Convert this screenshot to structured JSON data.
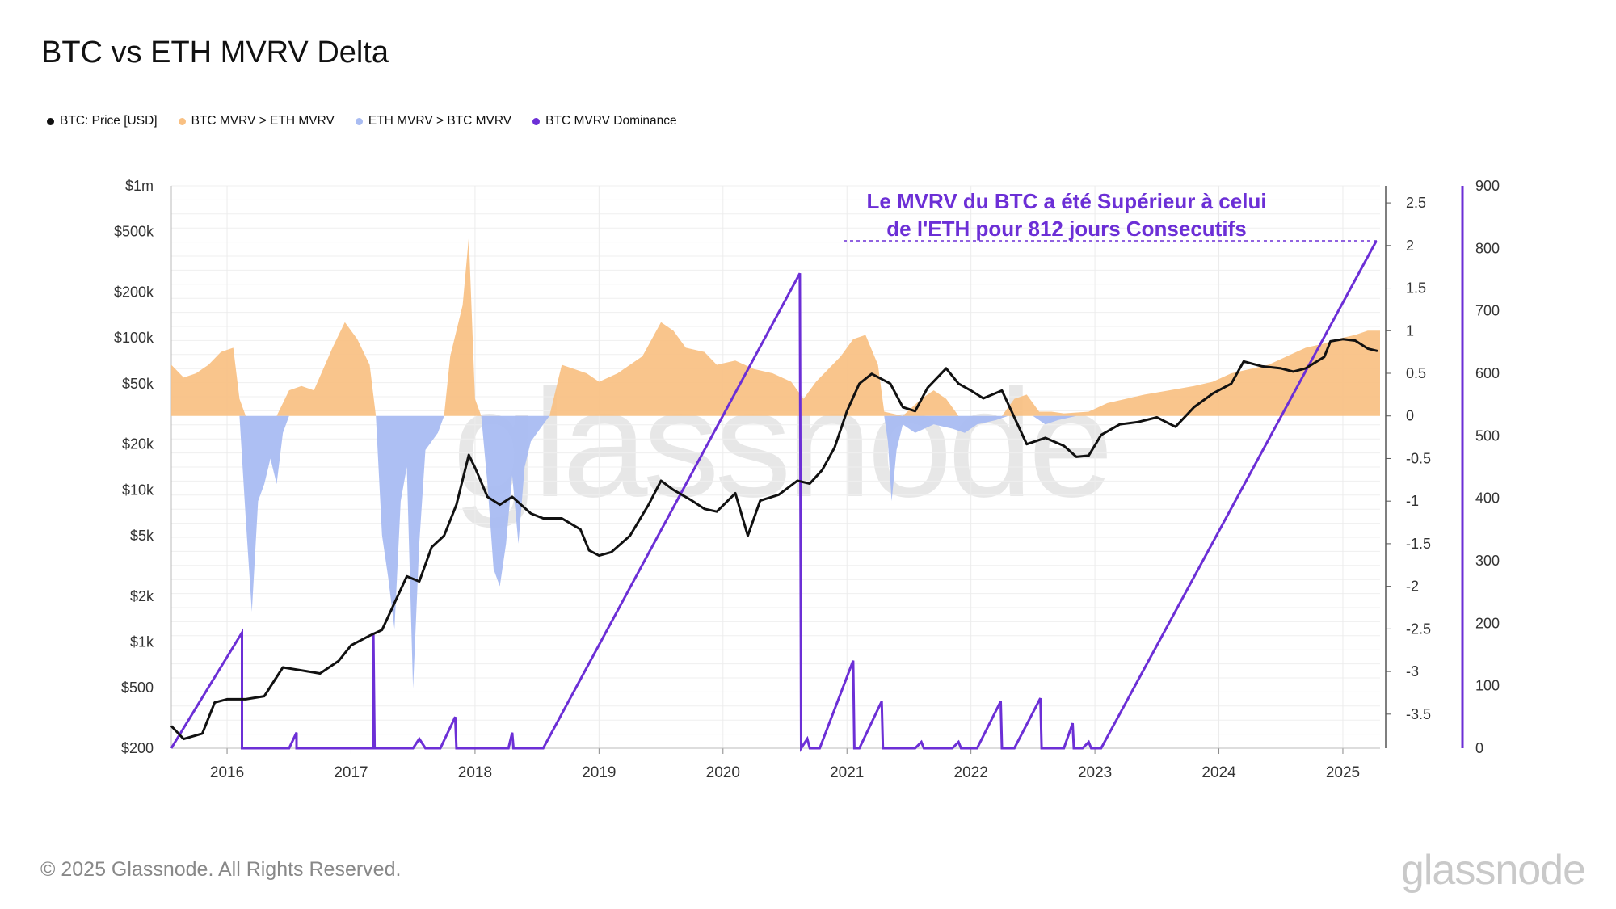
{
  "title": "BTC vs ETH MVRV Delta",
  "legend": [
    {
      "label": "BTC: Price [USD]",
      "color": "#111111"
    },
    {
      "label": "BTC MVRV > ETH MVRV",
      "color": "#f9c082"
    },
    {
      "label": "ETH MVRV > BTC MVRV",
      "color": "#a9bcf2"
    },
    {
      "label": "BTC MVRV Dominance",
      "color": "#6c2fd6"
    }
  ],
  "annotation_lines": [
    "Le MVRV du BTC a été Supérieur à celui",
    "de l'ETH pour 812 jours Consecutifs"
  ],
  "watermark": "glassnode",
  "footer": "© 2025 Glassnode. All Rights Reserved.",
  "brand": "glassnode",
  "chart_data": {
    "type": "line",
    "x_ticks": [
      "2016",
      "2017",
      "2018",
      "2019",
      "2020",
      "2021",
      "2022",
      "2023",
      "2024",
      "2025"
    ],
    "x_range": [
      2015.55,
      2025.3
    ],
    "y_left": {
      "scale": "log",
      "range": [
        200,
        1000000
      ],
      "ticks": [
        [
          "$200",
          200
        ],
        [
          "$500",
          500
        ],
        [
          "$1k",
          1000
        ],
        [
          "$2k",
          2000
        ],
        [
          "$5k",
          5000
        ],
        [
          "$10k",
          10000
        ],
        [
          "$20k",
          20000
        ],
        [
          "$50k",
          50000
        ],
        [
          "$100k",
          100000
        ],
        [
          "$200k",
          200000
        ],
        [
          "$500k",
          500000
        ],
        [
          "$1m",
          1000000
        ]
      ]
    },
    "y_right1": {
      "range": [
        -3.9,
        2.7
      ],
      "ticks": [
        [
          "2.5",
          2.5
        ],
        [
          "2",
          2
        ],
        [
          "1.5",
          1.5
        ],
        [
          "1",
          1
        ],
        [
          "0.5",
          0.5
        ],
        [
          "0",
          0
        ],
        [
          "-0.5",
          -0.5
        ],
        [
          "-1",
          -1
        ],
        [
          "-1.5",
          -1.5
        ],
        [
          "-2",
          -2
        ],
        [
          "-2.5",
          -2.5
        ],
        [
          "-3",
          -3
        ],
        [
          "-3.5",
          -3.5
        ]
      ]
    },
    "y_right2": {
      "range": [
        0,
        900
      ],
      "ticks": [
        [
          "900",
          900
        ],
        [
          "800",
          800
        ],
        [
          "700",
          700
        ],
        [
          "600",
          600
        ],
        [
          "500",
          500
        ],
        [
          "400",
          400
        ],
        [
          "300",
          300
        ],
        [
          "200",
          200
        ],
        [
          "100",
          100
        ],
        [
          "0",
          0
        ]
      ]
    },
    "annotation_value": 812,
    "series": [
      {
        "name": "BTC: Price [USD]",
        "axis": "left",
        "color": "#111111",
        "points": [
          [
            2015.55,
            280
          ],
          [
            2015.65,
            230
          ],
          [
            2015.8,
            250
          ],
          [
            2015.9,
            400
          ],
          [
            2016.0,
            420
          ],
          [
            2016.15,
            420
          ],
          [
            2016.3,
            440
          ],
          [
            2016.45,
            680
          ],
          [
            2016.6,
            650
          ],
          [
            2016.75,
            620
          ],
          [
            2016.9,
            750
          ],
          [
            2017.0,
            950
          ],
          [
            2017.15,
            1100
          ],
          [
            2017.25,
            1200
          ],
          [
            2017.35,
            1800
          ],
          [
            2017.45,
            2700
          ],
          [
            2017.55,
            2500
          ],
          [
            2017.65,
            4200
          ],
          [
            2017.75,
            5000
          ],
          [
            2017.85,
            8000
          ],
          [
            2017.95,
            17000
          ],
          [
            2018.0,
            14000
          ],
          [
            2018.1,
            9000
          ],
          [
            2018.2,
            8000
          ],
          [
            2018.3,
            9000
          ],
          [
            2018.45,
            7000
          ],
          [
            2018.55,
            6500
          ],
          [
            2018.7,
            6500
          ],
          [
            2018.85,
            5500
          ],
          [
            2018.92,
            4000
          ],
          [
            2019.0,
            3700
          ],
          [
            2019.1,
            3900
          ],
          [
            2019.25,
            5000
          ],
          [
            2019.4,
            8000
          ],
          [
            2019.5,
            11500
          ],
          [
            2019.6,
            10000
          ],
          [
            2019.75,
            8500
          ],
          [
            2019.85,
            7500
          ],
          [
            2019.95,
            7200
          ],
          [
            2020.1,
            9500
          ],
          [
            2020.2,
            5000
          ],
          [
            2020.3,
            8500
          ],
          [
            2020.45,
            9300
          ],
          [
            2020.6,
            11500
          ],
          [
            2020.7,
            11000
          ],
          [
            2020.8,
            13500
          ],
          [
            2020.9,
            19000
          ],
          [
            2021.0,
            33000
          ],
          [
            2021.1,
            50000
          ],
          [
            2021.2,
            58000
          ],
          [
            2021.35,
            50000
          ],
          [
            2021.45,
            35000
          ],
          [
            2021.55,
            33000
          ],
          [
            2021.65,
            47000
          ],
          [
            2021.8,
            63000
          ],
          [
            2021.9,
            50000
          ],
          [
            2022.0,
            45000
          ],
          [
            2022.1,
            40000
          ],
          [
            2022.25,
            45000
          ],
          [
            2022.35,
            30000
          ],
          [
            2022.45,
            20000
          ],
          [
            2022.6,
            22000
          ],
          [
            2022.75,
            19500
          ],
          [
            2022.85,
            16500
          ],
          [
            2022.95,
            16800
          ],
          [
            2023.05,
            23000
          ],
          [
            2023.2,
            27000
          ],
          [
            2023.35,
            28000
          ],
          [
            2023.5,
            30000
          ],
          [
            2023.65,
            26000
          ],
          [
            2023.8,
            35000
          ],
          [
            2023.95,
            43000
          ],
          [
            2024.1,
            50000
          ],
          [
            2024.2,
            70000
          ],
          [
            2024.35,
            65000
          ],
          [
            2024.5,
            63000
          ],
          [
            2024.6,
            60000
          ],
          [
            2024.7,
            63000
          ],
          [
            2024.85,
            75000
          ],
          [
            2024.9,
            95000
          ],
          [
            2025.0,
            98000
          ],
          [
            2025.1,
            96000
          ],
          [
            2025.2,
            85000
          ],
          [
            2025.28,
            82000
          ]
        ]
      },
      {
        "name": "BTC MVRV > ETH MVRV",
        "axis": "right1",
        "color": "#f9c082",
        "points": [
          [
            2015.55,
            0.6
          ],
          [
            2015.65,
            0.45
          ],
          [
            2015.75,
            0.5
          ],
          [
            2015.85,
            0.6
          ],
          [
            2015.95,
            0.75
          ],
          [
            2016.05,
            0.8
          ],
          [
            2016.1,
            0.2
          ],
          [
            2016.15,
            0
          ],
          [
            2016.4,
            0
          ],
          [
            2016.5,
            0.3
          ],
          [
            2016.6,
            0.35
          ],
          [
            2016.7,
            0.3
          ],
          [
            2016.85,
            0.8
          ],
          [
            2016.95,
            1.1
          ],
          [
            2017.05,
            0.9
          ],
          [
            2017.15,
            0.6
          ],
          [
            2017.2,
            0
          ],
          [
            2017.75,
            0
          ],
          [
            2017.8,
            0.7
          ],
          [
            2017.9,
            1.3
          ],
          [
            2017.95,
            2.1
          ],
          [
            2018.0,
            0.2
          ],
          [
            2018.05,
            0
          ],
          [
            2018.6,
            0
          ],
          [
            2018.7,
            0.6
          ],
          [
            2018.8,
            0.55
          ],
          [
            2018.9,
            0.5
          ],
          [
            2019.0,
            0.4
          ],
          [
            2019.15,
            0.5
          ],
          [
            2019.35,
            0.7
          ],
          [
            2019.5,
            1.1
          ],
          [
            2019.6,
            1.0
          ],
          [
            2019.7,
            0.8
          ],
          [
            2019.85,
            0.75
          ],
          [
            2019.95,
            0.6
          ],
          [
            2020.1,
            0.65
          ],
          [
            2020.25,
            0.55
          ],
          [
            2020.4,
            0.5
          ],
          [
            2020.55,
            0.4
          ],
          [
            2020.65,
            0.2
          ],
          [
            2020.75,
            0.4
          ],
          [
            2020.85,
            0.55
          ],
          [
            2020.95,
            0.7
          ],
          [
            2021.05,
            0.9
          ],
          [
            2021.15,
            0.95
          ],
          [
            2021.25,
            0.6
          ],
          [
            2021.3,
            0.05
          ],
          [
            2021.45,
            0
          ],
          [
            2021.6,
            0.2
          ],
          [
            2021.7,
            0.3
          ],
          [
            2021.8,
            0.2
          ],
          [
            2021.9,
            0
          ],
          [
            2022.25,
            0
          ],
          [
            2022.35,
            0.2
          ],
          [
            2022.45,
            0.25
          ],
          [
            2022.55,
            0.05
          ],
          [
            2022.65,
            0.05
          ],
          [
            2022.75,
            0.03
          ],
          [
            2022.95,
            0.05
          ],
          [
            2023.1,
            0.15
          ],
          [
            2023.25,
            0.2
          ],
          [
            2023.4,
            0.25
          ],
          [
            2023.6,
            0.3
          ],
          [
            2023.8,
            0.35
          ],
          [
            2023.95,
            0.4
          ],
          [
            2024.1,
            0.5
          ],
          [
            2024.25,
            0.55
          ],
          [
            2024.4,
            0.6
          ],
          [
            2024.55,
            0.7
          ],
          [
            2024.7,
            0.8
          ],
          [
            2024.85,
            0.85
          ],
          [
            2024.95,
            0.9
          ],
          [
            2025.1,
            0.95
          ],
          [
            2025.2,
            1.0
          ],
          [
            2025.3,
            1.0
          ]
        ]
      },
      {
        "name": "ETH MVRV > BTC MVRV",
        "axis": "right1",
        "color": "#a9bcf2",
        "points": [
          [
            2015.55,
            0
          ],
          [
            2016.1,
            0
          ],
          [
            2016.15,
            -1.2
          ],
          [
            2016.2,
            -2.3
          ],
          [
            2016.25,
            -1.0
          ],
          [
            2016.3,
            -0.8
          ],
          [
            2016.35,
            -0.5
          ],
          [
            2016.4,
            -0.8
          ],
          [
            2016.45,
            -0.2
          ],
          [
            2016.5,
            0
          ],
          [
            2017.2,
            0
          ],
          [
            2017.25,
            -1.4
          ],
          [
            2017.3,
            -1.9
          ],
          [
            2017.35,
            -2.5
          ],
          [
            2017.4,
            -1.0
          ],
          [
            2017.45,
            -0.6
          ],
          [
            2017.5,
            -3.2
          ],
          [
            2017.55,
            -1.5
          ],
          [
            2017.6,
            -0.4
          ],
          [
            2017.7,
            -0.2
          ],
          [
            2017.75,
            0
          ],
          [
            2018.05,
            0
          ],
          [
            2018.1,
            -0.8
          ],
          [
            2018.15,
            -1.8
          ],
          [
            2018.2,
            -2.0
          ],
          [
            2018.25,
            -1.5
          ],
          [
            2018.3,
            -0.7
          ],
          [
            2018.35,
            -1.5
          ],
          [
            2018.4,
            -0.6
          ],
          [
            2018.45,
            -0.3
          ],
          [
            2018.55,
            -0.1
          ],
          [
            2018.6,
            0
          ],
          [
            2021.3,
            0
          ],
          [
            2021.33,
            -0.3
          ],
          [
            2021.36,
            -1.0
          ],
          [
            2021.4,
            -0.4
          ],
          [
            2021.45,
            -0.1
          ],
          [
            2021.55,
            -0.2
          ],
          [
            2021.7,
            -0.1
          ],
          [
            2021.85,
            -0.15
          ],
          [
            2021.95,
            -0.2
          ],
          [
            2022.05,
            -0.1
          ],
          [
            2022.2,
            -0.05
          ],
          [
            2022.3,
            0
          ],
          [
            2022.5,
            0
          ],
          [
            2022.6,
            -0.1
          ],
          [
            2022.7,
            -0.05
          ],
          [
            2022.85,
            0
          ],
          [
            2025.3,
            0
          ]
        ]
      },
      {
        "name": "BTC MVRV Dominance",
        "axis": "right2",
        "color": "#6c2fd6",
        "points": [
          [
            2015.55,
            0
          ],
          [
            2016.12,
            185
          ],
          [
            2016.12,
            0
          ],
          [
            2016.5,
            0
          ],
          [
            2016.56,
            25
          ],
          [
            2016.56,
            0
          ],
          [
            2017.18,
            0
          ],
          [
            2017.18,
            185
          ],
          [
            2017.19,
            0
          ],
          [
            2017.5,
            0
          ],
          [
            2017.55,
            15
          ],
          [
            2017.6,
            0
          ],
          [
            2017.72,
            0
          ],
          [
            2017.84,
            50
          ],
          [
            2017.85,
            0
          ],
          [
            2018.27,
            0
          ],
          [
            2018.3,
            25
          ],
          [
            2018.31,
            0
          ],
          [
            2018.55,
            0
          ],
          [
            2020.62,
            760
          ],
          [
            2020.63,
            0
          ],
          [
            2020.68,
            15
          ],
          [
            2020.7,
            0
          ],
          [
            2020.78,
            0
          ],
          [
            2021.05,
            140
          ],
          [
            2021.06,
            0
          ],
          [
            2021.1,
            0
          ],
          [
            2021.28,
            75
          ],
          [
            2021.29,
            0
          ],
          [
            2021.55,
            0
          ],
          [
            2021.6,
            10
          ],
          [
            2021.62,
            0
          ],
          [
            2021.85,
            0
          ],
          [
            2021.9,
            10
          ],
          [
            2021.92,
            0
          ],
          [
            2022.05,
            0
          ],
          [
            2022.24,
            75
          ],
          [
            2022.25,
            0
          ],
          [
            2022.35,
            0
          ],
          [
            2022.56,
            80
          ],
          [
            2022.57,
            0
          ],
          [
            2022.75,
            0
          ],
          [
            2022.82,
            40
          ],
          [
            2022.83,
            0
          ],
          [
            2022.9,
            0
          ],
          [
            2022.95,
            10
          ],
          [
            2022.97,
            0
          ],
          [
            2023.05,
            0
          ],
          [
            2025.27,
            812
          ]
        ]
      }
    ]
  }
}
